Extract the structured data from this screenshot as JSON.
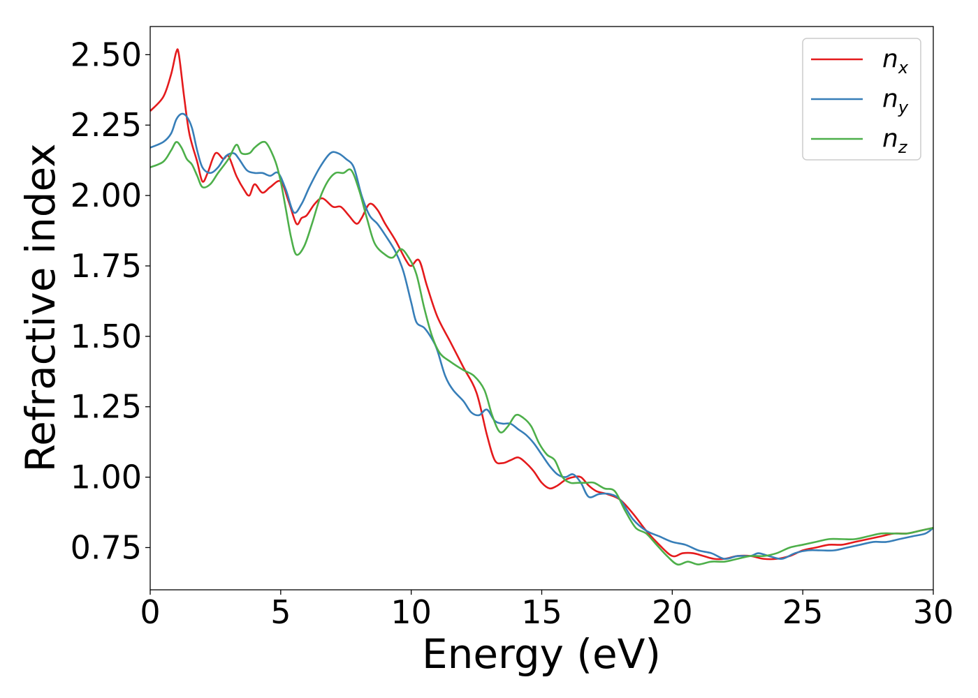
{
  "chart_data": {
    "type": "line",
    "title": "",
    "xlabel": "Energy (eV)",
    "ylabel": "Refractive index",
    "xlim": [
      0,
      30
    ],
    "ylim": [
      0.6,
      2.6
    ],
    "xticks": [
      0,
      5,
      10,
      15,
      20,
      25,
      30
    ],
    "xtick_labels": [
      "0",
      "5",
      "10",
      "15",
      "20",
      "25",
      "30"
    ],
    "yticks": [
      0.75,
      1.0,
      1.25,
      1.5,
      1.75,
      2.0,
      2.25,
      2.5
    ],
    "ytick_labels": [
      "0.75",
      "1.00",
      "1.25",
      "1.50",
      "1.75",
      "2.00",
      "2.25",
      "2.50"
    ],
    "grid": false,
    "legend_position": "top-right",
    "series": [
      {
        "name": "n",
        "subscript": "x",
        "color": "#e41a1c",
        "x": [
          0,
          0.5,
          0.8,
          1.0,
          1.1,
          1.3,
          1.5,
          1.8,
          2.0,
          2.2,
          2.5,
          2.8,
          3.0,
          3.3,
          3.6,
          3.8,
          4.0,
          4.3,
          4.6,
          5.0,
          5.3,
          5.6,
          5.8,
          6.0,
          6.3,
          6.6,
          7.0,
          7.3,
          7.6,
          7.9,
          8.1,
          8.4,
          8.7,
          9.0,
          9.4,
          9.8,
          10.0,
          10.3,
          10.6,
          11.0,
          11.5,
          12.0,
          12.5,
          12.9,
          13.2,
          13.5,
          13.8,
          14.1,
          14.4,
          14.7,
          15.0,
          15.3,
          15.6,
          15.9,
          16.2,
          16.5,
          16.8,
          17.1,
          17.5,
          18.0,
          18.5,
          19.0,
          19.5,
          20.0,
          20.4,
          20.8,
          21.2,
          21.6,
          22.0,
          22.5,
          23.0,
          23.5,
          24.0,
          24.5,
          25.0,
          25.5,
          26.0,
          26.5,
          27.0,
          27.5,
          28.0,
          28.5,
          29.0,
          29.5,
          30.0
        ],
        "y": [
          2.3,
          2.35,
          2.43,
          2.51,
          2.5,
          2.35,
          2.22,
          2.12,
          2.05,
          2.08,
          2.15,
          2.13,
          2.14,
          2.07,
          2.02,
          2.0,
          2.04,
          2.01,
          2.03,
          2.05,
          1.98,
          1.9,
          1.92,
          1.93,
          1.97,
          1.99,
          1.96,
          1.96,
          1.93,
          1.9,
          1.92,
          1.97,
          1.95,
          1.9,
          1.84,
          1.77,
          1.75,
          1.77,
          1.68,
          1.57,
          1.48,
          1.39,
          1.3,
          1.15,
          1.06,
          1.05,
          1.06,
          1.07,
          1.05,
          1.02,
          0.98,
          0.96,
          0.97,
          0.99,
          1.0,
          1.0,
          0.97,
          0.95,
          0.94,
          0.92,
          0.87,
          0.81,
          0.76,
          0.72,
          0.73,
          0.73,
          0.72,
          0.71,
          0.71,
          0.72,
          0.72,
          0.71,
          0.71,
          0.72,
          0.74,
          0.75,
          0.76,
          0.76,
          0.77,
          0.78,
          0.79,
          0.8,
          0.8,
          0.81,
          0.82
        ]
      },
      {
        "name": "n",
        "subscript": "y",
        "color": "#377eb8",
        "x": [
          0,
          0.5,
          0.8,
          1.0,
          1.2,
          1.4,
          1.6,
          1.8,
          2.0,
          2.3,
          2.6,
          2.9,
          3.2,
          3.4,
          3.7,
          4.0,
          4.3,
          4.6,
          4.9,
          5.2,
          5.5,
          5.8,
          6.1,
          6.5,
          6.9,
          7.2,
          7.5,
          7.8,
          8.1,
          8.4,
          8.7,
          9.0,
          9.4,
          9.7,
          10.0,
          10.2,
          10.5,
          10.8,
          11.0,
          11.3,
          11.6,
          12.0,
          12.3,
          12.6,
          12.9,
          13.2,
          13.5,
          13.8,
          14.1,
          14.4,
          14.7,
          15.0,
          15.3,
          15.6,
          15.9,
          16.2,
          16.5,
          16.8,
          17.2,
          17.6,
          18.0,
          18.5,
          19.0,
          19.5,
          20.0,
          20.5,
          21.0,
          21.5,
          22.0,
          22.5,
          23.0,
          23.3,
          23.7,
          24.2,
          24.7,
          25.2,
          25.7,
          26.2,
          26.7,
          27.2,
          27.7,
          28.2,
          28.7,
          29.2,
          29.7,
          30.0
        ],
        "y": [
          2.17,
          2.19,
          2.22,
          2.27,
          2.29,
          2.28,
          2.24,
          2.16,
          2.1,
          2.08,
          2.1,
          2.14,
          2.15,
          2.13,
          2.09,
          2.08,
          2.08,
          2.07,
          2.08,
          2.02,
          1.94,
          1.97,
          2.03,
          2.1,
          2.15,
          2.15,
          2.13,
          2.1,
          2.0,
          1.93,
          1.9,
          1.86,
          1.8,
          1.73,
          1.62,
          1.55,
          1.53,
          1.49,
          1.45,
          1.36,
          1.31,
          1.27,
          1.23,
          1.22,
          1.24,
          1.2,
          1.19,
          1.19,
          1.17,
          1.15,
          1.12,
          1.08,
          1.04,
          1.01,
          1.0,
          1.01,
          0.98,
          0.93,
          0.94,
          0.94,
          0.92,
          0.85,
          0.81,
          0.79,
          0.77,
          0.76,
          0.74,
          0.73,
          0.71,
          0.72,
          0.72,
          0.73,
          0.72,
          0.71,
          0.73,
          0.74,
          0.74,
          0.74,
          0.75,
          0.76,
          0.77,
          0.77,
          0.78,
          0.79,
          0.8,
          0.82
        ]
      },
      {
        "name": "n",
        "subscript": "z",
        "color": "#4daf4a",
        "x": [
          0,
          0.5,
          0.8,
          1.0,
          1.2,
          1.4,
          1.6,
          1.8,
          2.0,
          2.3,
          2.6,
          3.0,
          3.3,
          3.5,
          3.8,
          4.0,
          4.3,
          4.5,
          4.8,
          5.0,
          5.2,
          5.4,
          5.6,
          5.9,
          6.2,
          6.5,
          6.8,
          7.1,
          7.4,
          7.7,
          8.0,
          8.3,
          8.6,
          9.0,
          9.3,
          9.6,
          9.9,
          10.2,
          10.5,
          10.8,
          11.1,
          11.5,
          12.0,
          12.4,
          12.8,
          13.1,
          13.4,
          13.7,
          14.0,
          14.3,
          14.6,
          14.9,
          15.2,
          15.5,
          15.8,
          16.1,
          16.4,
          16.7,
          17.0,
          17.4,
          17.8,
          18.2,
          18.6,
          19.0,
          19.4,
          19.8,
          20.2,
          20.6,
          21.0,
          21.5,
          22.0,
          22.5,
          23.0,
          23.5,
          24.0,
          24.5,
          25.0,
          25.5,
          26.0,
          26.5,
          27.0,
          27.5,
          28.0,
          28.5,
          29.0,
          29.5,
          30.0
        ],
        "y": [
          2.1,
          2.12,
          2.16,
          2.19,
          2.17,
          2.13,
          2.11,
          2.07,
          2.03,
          2.04,
          2.08,
          2.13,
          2.18,
          2.15,
          2.15,
          2.17,
          2.19,
          2.18,
          2.12,
          2.05,
          1.95,
          1.85,
          1.79,
          1.82,
          1.9,
          1.99,
          2.05,
          2.08,
          2.08,
          2.09,
          2.02,
          1.92,
          1.83,
          1.79,
          1.78,
          1.81,
          1.78,
          1.72,
          1.6,
          1.5,
          1.44,
          1.41,
          1.38,
          1.36,
          1.31,
          1.22,
          1.16,
          1.18,
          1.22,
          1.21,
          1.18,
          1.12,
          1.08,
          1.06,
          1.0,
          0.98,
          0.98,
          0.98,
          0.98,
          0.96,
          0.95,
          0.88,
          0.82,
          0.8,
          0.76,
          0.72,
          0.69,
          0.7,
          0.69,
          0.7,
          0.7,
          0.71,
          0.72,
          0.72,
          0.73,
          0.75,
          0.76,
          0.77,
          0.78,
          0.78,
          0.78,
          0.79,
          0.8,
          0.8,
          0.8,
          0.81,
          0.82
        ]
      }
    ]
  }
}
